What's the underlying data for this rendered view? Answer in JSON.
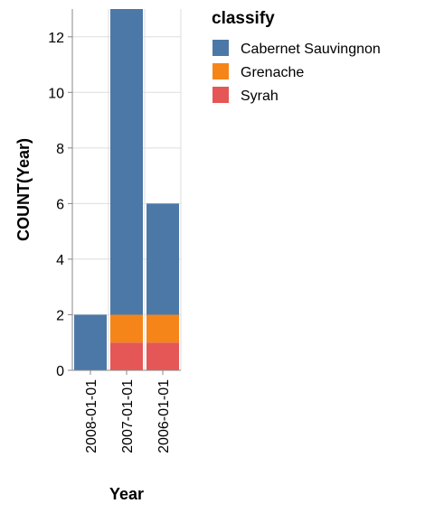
{
  "chart_data": {
    "type": "bar",
    "stacked": true,
    "categories": [
      "2008-01-01",
      "2007-01-01",
      "2006-01-01"
    ],
    "series": [
      {
        "name": "Syrah",
        "values": [
          0,
          1,
          1
        ],
        "color": "#e45756"
      },
      {
        "name": "Grenache",
        "values": [
          0,
          1,
          1
        ],
        "color": "#f58518"
      },
      {
        "name": "Cabernet Sauvingnon",
        "values": [
          2,
          11,
          4
        ],
        "color": "#4c78a8"
      }
    ],
    "legend_order": [
      "Cabernet Sauvingnon",
      "Grenache",
      "Syrah"
    ],
    "legend_title": "classify",
    "legend_position": "right",
    "xlabel": "Year",
    "ylabel": "COUNT(Year)",
    "ylim": [
      0,
      13
    ],
    "yticks": [
      0,
      2,
      4,
      6,
      8,
      10,
      12
    ],
    "grid": true
  }
}
